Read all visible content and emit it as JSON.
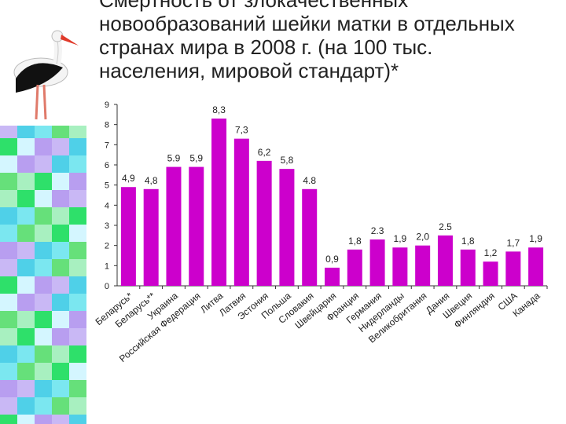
{
  "slide": {
    "title_lines": [
      "Смертность от злокачественных",
      "новообразований шейки матки в отдельных",
      "странах мира в 2008 г.  (на 100 тыс.",
      "населения, мировой стандарт)*"
    ]
  },
  "colors": {
    "bar": "#cc00cc",
    "axis": "#333333",
    "text": "#222222"
  },
  "decor": {
    "sidebar_pattern": "green-cyan-purple mosaic",
    "icon": "stork-icon"
  },
  "chart_data": {
    "type": "bar",
    "title": "",
    "xlabel": "",
    "ylabel": "",
    "ylim": [
      0,
      9
    ],
    "yticks": [
      "0",
      "1",
      "2",
      "3",
      "4",
      "5",
      "6",
      "7",
      "8",
      "9"
    ],
    "grid": false,
    "legend": "none",
    "categories": [
      "Беларусь*",
      "Беларусь**",
      "Украина",
      "Российская Федерация",
      "Литва",
      "Латвия",
      "Эстония",
      "Польша",
      "Словакия",
      "Швейцария",
      "Франция",
      "Германия",
      "Нидерланды",
      "Великобритания",
      "Дания",
      "Швеция",
      "Финляндия",
      "США",
      "Канада"
    ],
    "values": [
      4.9,
      4.8,
      5.9,
      5.9,
      8.3,
      7.3,
      6.2,
      5.8,
      4.8,
      0.9,
      1.8,
      2.3,
      1.9,
      2.0,
      2.5,
      1.8,
      1.2,
      1.7,
      1.9
    ],
    "data_labels": [
      "4,9",
      "4,8",
      "5.9",
      "5,9",
      "8,3",
      "7,3",
      "6,2",
      "5,8",
      "4.8",
      "0,9",
      "1,8",
      "2.3",
      "1,9",
      "2,0",
      "2.5",
      "1,8",
      "1,2",
      "1,7",
      "1,9"
    ]
  }
}
